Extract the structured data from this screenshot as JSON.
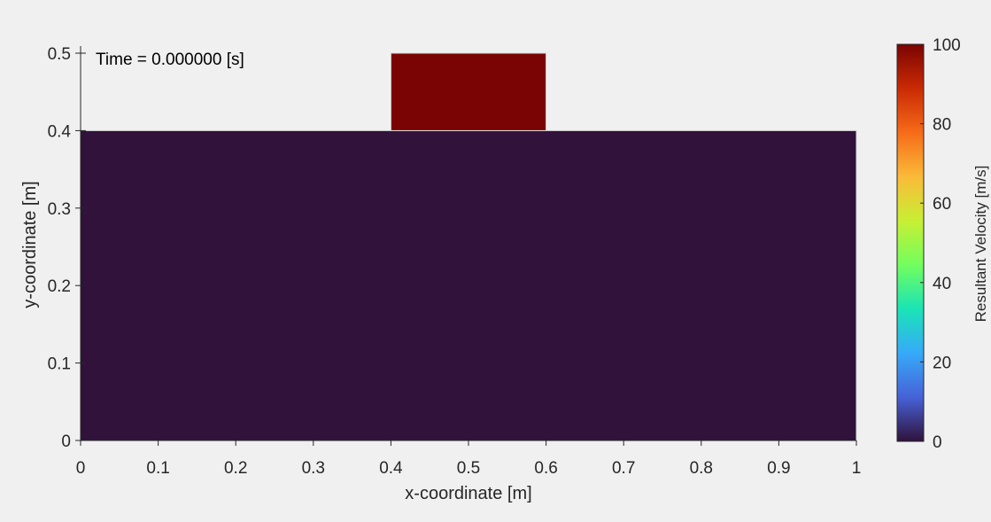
{
  "chart_data": {
    "type": "heatmap",
    "annotation": "Time = 0.000000 [s]",
    "xlabel": "x-coordinate [m]",
    "ylabel": "y-coordinate [m]",
    "xlim": [
      0,
      1
    ],
    "ylim": [
      0,
      0.5
    ],
    "xticks": [
      "0",
      "0.1",
      "0.2",
      "0.3",
      "0.4",
      "0.5",
      "0.6",
      "0.7",
      "0.8",
      "0.9",
      "1"
    ],
    "yticks": [
      "0",
      "0.1",
      "0.2",
      "0.3",
      "0.4",
      "0.5"
    ],
    "regions": [
      {
        "name": "",
        "x": [
          0,
          1
        ],
        "y": [
          0,
          0.4
        ],
        "velocity": 0,
        "color": "#30123b"
      },
      {
        "name": "",
        "x": [
          0.4,
          0.6
        ],
        "y": [
          0.4,
          0.5
        ],
        "velocity": 100,
        "color": "#7a0403"
      }
    ],
    "colorbar": {
      "label": "Resultant Velocity [m/s]",
      "range": [
        0,
        100
      ],
      "ticks": [
        "0",
        "20",
        "40",
        "60",
        "80",
        "100"
      ],
      "colormap": "turbo",
      "stops": [
        "#30123b",
        "#4662d7",
        "#36aaf9",
        "#1ae4b6",
        "#72fe5e",
        "#c8ef34",
        "#faba39",
        "#f66b19",
        "#ca2a04",
        "#7a0403"
      ]
    },
    "grid": false
  }
}
